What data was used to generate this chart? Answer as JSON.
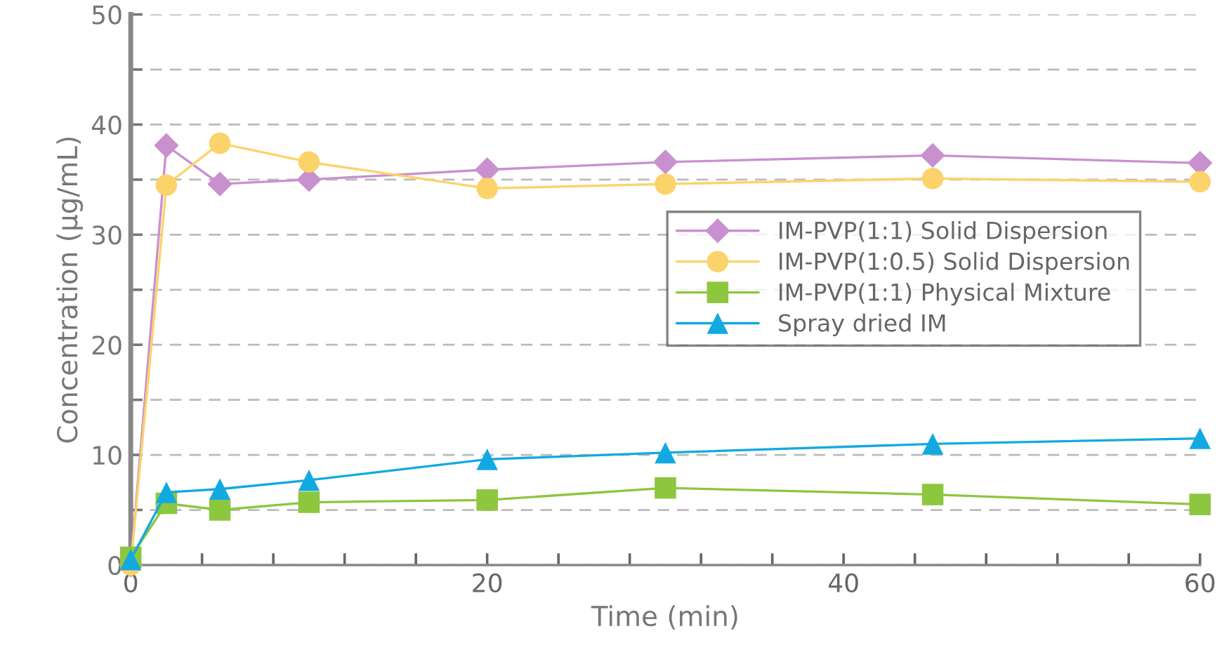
{
  "chart_data": {
    "type": "line",
    "xlabel": "Time (min)",
    "ylabel": "Concentration (μg/mL)",
    "x": [
      0,
      2,
      5,
      10,
      20,
      30,
      45,
      60
    ],
    "series": [
      {
        "name": "IM-PVP(1:1) Solid Dispersion",
        "color": "#c990cf",
        "marker": "diamond",
        "values": [
          0,
          38.1,
          34.6,
          35.0,
          35.9,
          36.6,
          37.2,
          36.5
        ]
      },
      {
        "name": "IM-PVP(1:0.5) Solid Dispersion",
        "color": "#fcd36b",
        "marker": "circle",
        "values": [
          0,
          34.5,
          38.3,
          36.6,
          34.2,
          34.6,
          35.1,
          34.8
        ]
      },
      {
        "name": "IM-PVP(1:1) Physical Mixture",
        "color": "#8dc63f",
        "marker": "square",
        "values": [
          0.7,
          5.6,
          5.0,
          5.7,
          5.9,
          7.0,
          6.4,
          5.5
        ]
      },
      {
        "name": "Spray dried IM",
        "color": "#12a9e1",
        "marker": "triangle",
        "values": [
          0.5,
          6.6,
          6.9,
          7.7,
          9.6,
          10.2,
          11.0,
          11.5
        ]
      }
    ],
    "xlim": [
      0,
      60
    ],
    "xticks": [
      0,
      {
        "value": 4,
        "label": null
      },
      {
        "value": 8,
        "label": null
      },
      {
        "value": 12,
        "label": null
      },
      {
        "value": 16,
        "label": null
      },
      20,
      {
        "value": 24,
        "label": null
      },
      {
        "value": 28,
        "label": null
      },
      {
        "value": 32,
        "label": null
      },
      {
        "value": 36,
        "label": null
      },
      40,
      {
        "value": 44,
        "label": null
      },
      {
        "value": 48,
        "label": null
      },
      {
        "value": 52,
        "label": null
      },
      {
        "value": 56,
        "label": null
      },
      60
    ],
    "ylim": [
      0,
      50
    ],
    "yticks": [
      0,
      {
        "value": 5,
        "label": null
      },
      10,
      {
        "value": 15,
        "label": null
      },
      20,
      {
        "value": 25,
        "label": null
      },
      30,
      {
        "value": 35,
        "label": null
      },
      40,
      {
        "value": 45,
        "label": null
      },
      50
    ],
    "grid": "y",
    "legend": "right",
    "line_style": "solid"
  }
}
